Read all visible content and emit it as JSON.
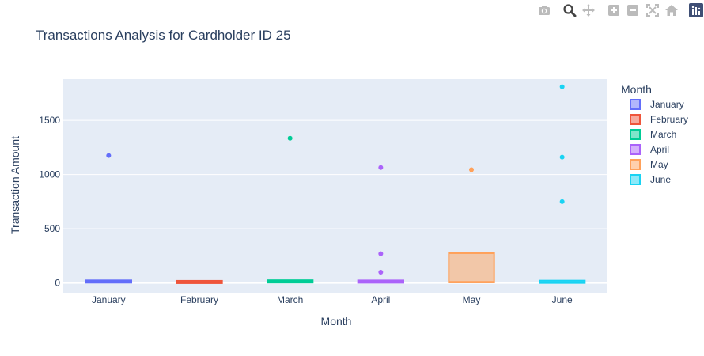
{
  "modebar": {
    "buttons": [
      {
        "name": "camera-icon"
      },
      {
        "name": "zoom-icon"
      },
      {
        "name": "pan-icon"
      },
      {
        "name": "zoom-in-icon"
      },
      {
        "name": "zoom-out-icon"
      },
      {
        "name": "autoscale-icon"
      },
      {
        "name": "home-icon"
      },
      {
        "name": "plotly-logo-icon"
      }
    ],
    "active_color": "#444444",
    "inactive_color": "#bbbbbb",
    "logo_color": "#3f4f75"
  },
  "chart_data": {
    "type": "box",
    "title": "Transactions Analysis for Cardholder ID 25",
    "xlabel": "Month",
    "ylabel": "Transaction Amount",
    "categories": [
      "January",
      "February",
      "March",
      "April",
      "May",
      "June"
    ],
    "ylim": [
      -90,
      1880
    ],
    "yticks": [
      0,
      500,
      1000,
      1500
    ],
    "grid": true,
    "legend": {
      "title": "Month",
      "position": "right"
    },
    "plot_bgcolor": "#e5ecf6",
    "series": [
      {
        "name": "January",
        "color": "#636efa",
        "box": {
          "q1": 5,
          "median": 12,
          "q3": 22
        },
        "outliers": [
          1175
        ]
      },
      {
        "name": "February",
        "color": "#ef553b",
        "box": {
          "q1": 2,
          "median": 8,
          "q3": 16
        },
        "outliers": []
      },
      {
        "name": "March",
        "color": "#00cc96",
        "box": {
          "q1": 5,
          "median": 14,
          "q3": 24
        },
        "outliers": [
          1335
        ]
      },
      {
        "name": "April",
        "color": "#ab63fa",
        "box": {
          "q1": 4,
          "median": 12,
          "q3": 22
        },
        "outliers": [
          100,
          270,
          1065
        ]
      },
      {
        "name": "May",
        "color": "#ffa15a",
        "box": {
          "q1": 5,
          "median": 10,
          "q3": 275
        },
        "outliers": [
          1045
        ]
      },
      {
        "name": "June",
        "color": "#19d3f3",
        "box": {
          "q1": 2,
          "median": 8,
          "q3": 20
        },
        "outliers": [
          750,
          1160,
          1810
        ]
      }
    ]
  }
}
